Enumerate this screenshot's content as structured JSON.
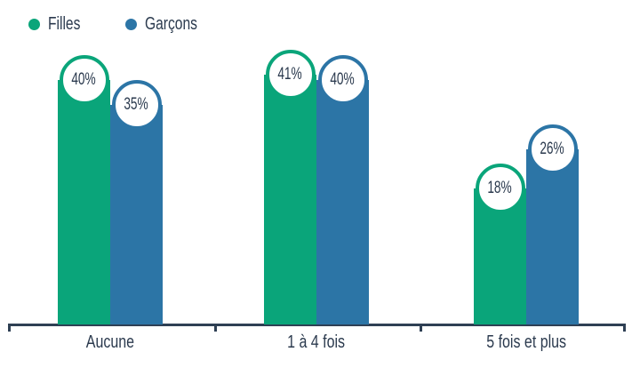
{
  "legend": [
    {
      "label": "Filles",
      "color": "#0aa57a"
    },
    {
      "label": "Garçons",
      "color": "#2c75a6"
    }
  ],
  "chart_data": {
    "type": "bar",
    "title": "",
    "xlabel": "",
    "ylabel": "",
    "categories": [
      "Aucune",
      "1 à 4 fois",
      "5 fois et plus"
    ],
    "series": [
      {
        "name": "Filles",
        "color": "#0aa57a",
        "values": [
          40,
          41,
          18
        ],
        "labels": [
          "40%",
          "41%",
          "18%"
        ]
      },
      {
        "name": "Garçons",
        "color": "#2c75a6",
        "values": [
          35,
          40,
          26
        ],
        "labels": [
          "35%",
          "40%",
          "26%"
        ]
      }
    ],
    "grid": false,
    "legend_position": "top-left",
    "value_unit": "%"
  }
}
